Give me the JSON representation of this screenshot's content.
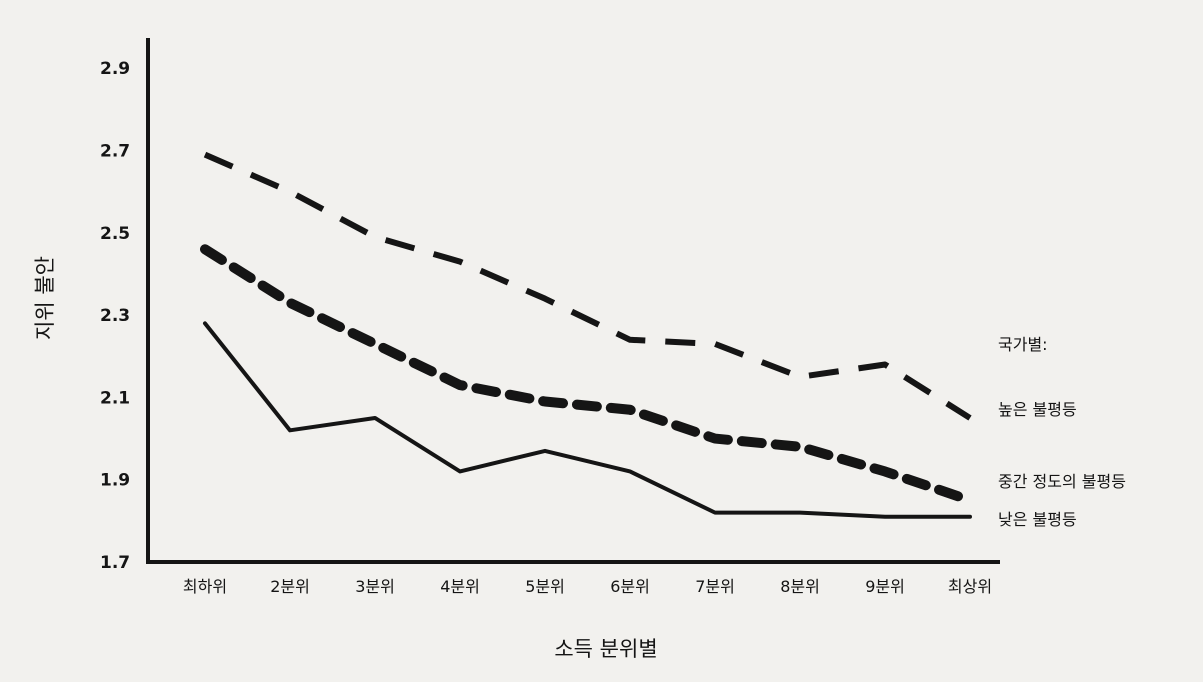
{
  "chart_data": {
    "type": "line",
    "ylabel": "지위 불안",
    "xlabel": "소득 분위별",
    "legend_title": "국가별:",
    "categories": [
      "최하위",
      "2분위",
      "3분위",
      "4분위",
      "5분위",
      "6분위",
      "7분위",
      "8분위",
      "9분위",
      "최상위"
    ],
    "yticks": [
      "2.9",
      "2.7",
      "2.5",
      "2.3",
      "2.1",
      "1.9",
      "1.7"
    ],
    "ylim": [
      1.7,
      2.92
    ],
    "grid": false,
    "legend_placement": "right",
    "series": [
      {
        "name": "높은 불평등",
        "style": "long-dash",
        "values": [
          2.69,
          2.6,
          2.49,
          2.43,
          2.34,
          2.24,
          2.23,
          2.15,
          2.18,
          2.05
        ]
      },
      {
        "name": "중간 정도의 불평등",
        "style": "short-dash-bold",
        "values": [
          2.46,
          2.33,
          2.23,
          2.13,
          2.09,
          2.07,
          2.0,
          1.98,
          1.92,
          1.85
        ]
      },
      {
        "name": "낮은 불평등",
        "style": "solid",
        "values": [
          2.28,
          2.02,
          2.05,
          1.92,
          1.97,
          1.92,
          1.82,
          1.82,
          1.81,
          1.81
        ]
      }
    ],
    "color": "#151515"
  }
}
